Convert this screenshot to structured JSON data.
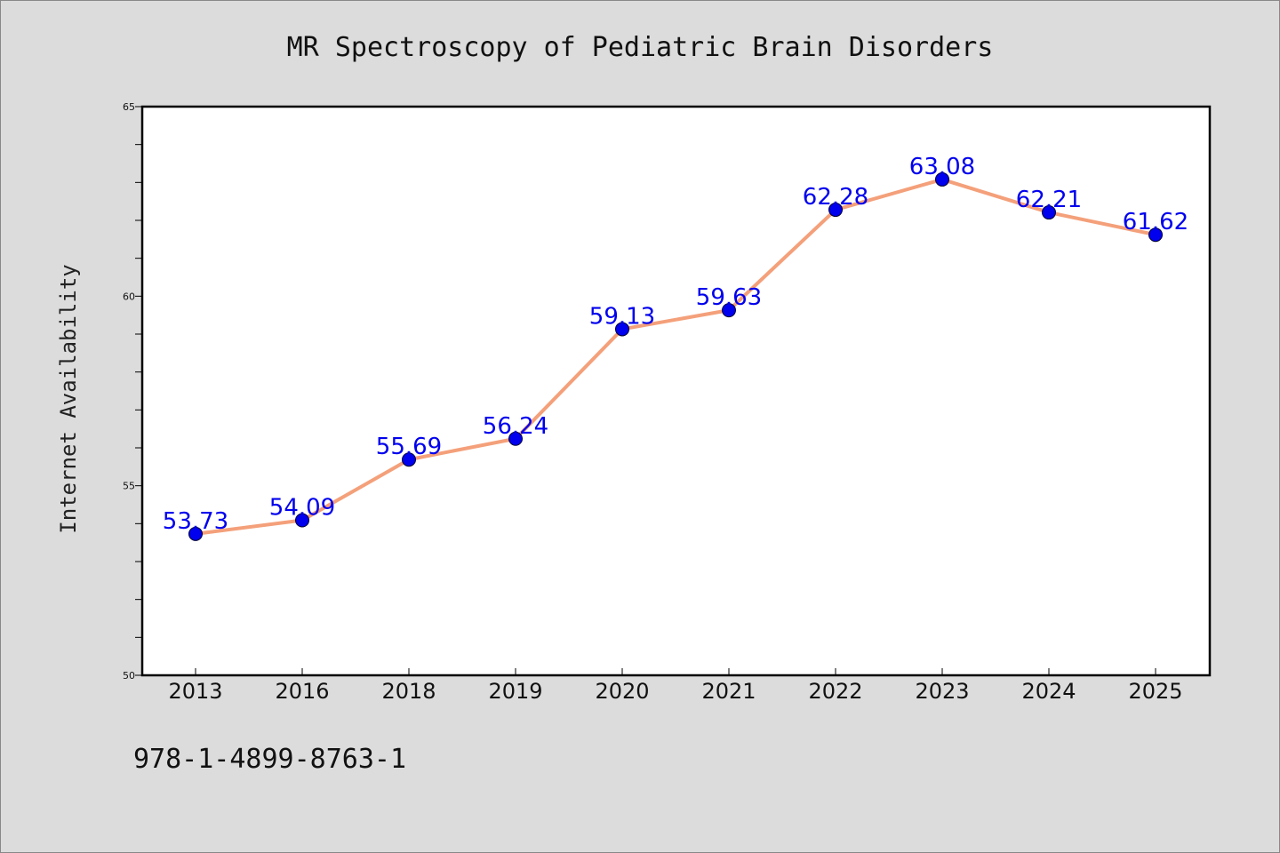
{
  "chart_data": {
    "type": "line",
    "title": "MR Spectroscopy of Pediatric Brain Disorders",
    "xlabel": "",
    "ylabel": "Internet Availability",
    "categories": [
      "2013",
      "2016",
      "2018",
      "2019",
      "2020",
      "2021",
      "2022",
      "2023",
      "2024",
      "2025"
    ],
    "values": [
      53.73,
      54.09,
      55.69,
      56.24,
      59.13,
      59.63,
      62.28,
      63.08,
      62.21,
      61.62
    ],
    "data_labels": [
      "53.73",
      "54.09",
      "55.69",
      "56.24",
      "59.13",
      "59.63",
      "62.28",
      "63.08",
      "62.21",
      "61.62"
    ],
    "ylim": [
      50,
      65
    ],
    "yticks": [
      50,
      55,
      60,
      65
    ],
    "ytick_labels": [
      "50",
      "55",
      "60",
      "65"
    ],
    "grid": false,
    "legend": "none",
    "colors": {
      "line": "#f4a07a",
      "marker": "#0000ee",
      "label": "#0000ee",
      "background": "#dcdcdc",
      "plot_area": "#ffffff"
    }
  },
  "footer": {
    "isbn": "978-1-4899-8763-1"
  }
}
